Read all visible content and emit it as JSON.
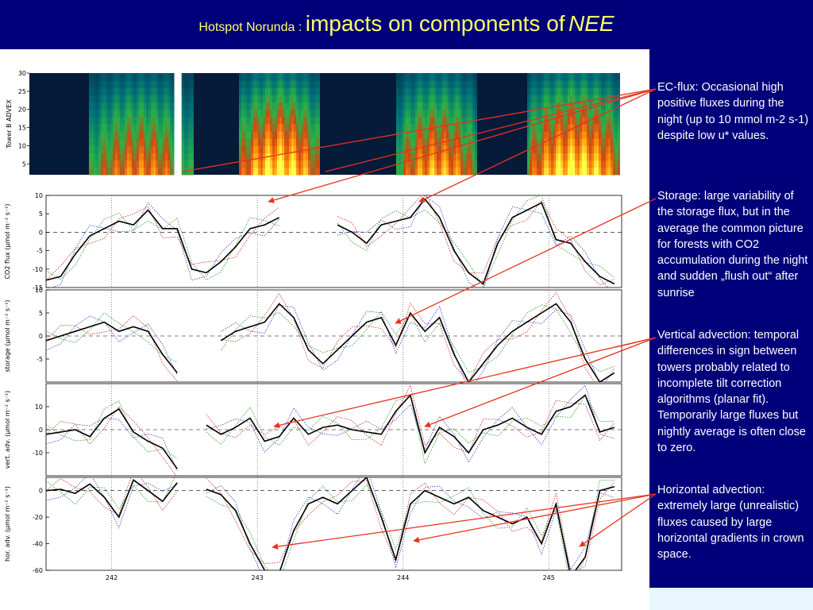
{
  "title": {
    "prefix": "Hotspot Norunda :",
    "main": "impacts on components of",
    "emph": "NEE"
  },
  "notes": [
    "EC-flux: Occasional high positive fluxes during the night (up to 10 mmol m-2 s-1) despite low u* values.",
    "Storage: large variability of the storage flux, but in the average the common picture for forests with CO2 accumulation during the night and sudden „flush out“ after sunrise",
    "Vertical advection: temporal differences in sign between towers probably related to incomplete tilt correction algorithms (planar fit). Temporarily large fluxes but nightly average is often close to zero.",
    "Horizontal advection: extremely large (unrealistic) fluxes caused by large horizontal gradients in crown space."
  ],
  "colors": {
    "background": "#00007a",
    "title": "#ffff66",
    "notes": "#ffffff",
    "arrow": "#e8321e"
  },
  "chart_data": {
    "type": "line",
    "x_ticks": [
      242,
      243,
      244,
      245
    ],
    "x_range": [
      241.55,
      245.5
    ],
    "heatmap": {
      "ylabel": "Tower B ADVEX",
      "yticks": [
        5,
        10,
        15,
        20,
        25,
        30
      ],
      "ylim": [
        2,
        30
      ],
      "hot_periods": [
        {
          "x0": 241.83,
          "x1": 242.55,
          "peak": 0.75
        },
        {
          "x0": 242.86,
          "x1": 243.42,
          "peak": 1.0
        },
        {
          "x0": 243.95,
          "x1": 244.5,
          "peak": 0.85
        },
        {
          "x0": 244.84,
          "x1": 245.5,
          "peak": 1.0
        }
      ],
      "gaps": [
        [
          242.43,
          242.48
        ]
      ]
    },
    "panels": [
      {
        "ylabel": "CO2 flux (μmol m⁻² s⁻¹)",
        "yticks": [
          10,
          5,
          0,
          -5,
          -10,
          -15
        ],
        "ylim": [
          -15,
          10
        ],
        "x": [
          241.55,
          241.65,
          241.75,
          241.85,
          241.95,
          242.05,
          242.15,
          242.25,
          242.35,
          242.45,
          242.55,
          242.65,
          242.75,
          242.85,
          242.95,
          243.05,
          243.15,
          243.25,
          243.35,
          243.45,
          243.55,
          243.65,
          243.75,
          243.85,
          243.95,
          244.05,
          244.15,
          244.25,
          244.35,
          244.45,
          244.55,
          244.65,
          244.75,
          244.85,
          244.95,
          245.05,
          245.15,
          245.25,
          245.35,
          245.45
        ],
        "y": [
          -13,
          -12,
          -6,
          -1,
          1,
          3,
          2,
          6,
          1,
          1,
          -10,
          -11,
          -8,
          -4,
          1,
          2,
          4,
          null,
          null,
          null,
          2,
          0,
          -3,
          2,
          3,
          4,
          9,
          4,
          -5,
          -11,
          -14,
          -3,
          4,
          6,
          8,
          -2,
          -3,
          -8,
          -12,
          -14
        ]
      },
      {
        "ylabel": "storage (μmol m⁻² s⁻¹)",
        "yticks": [
          10,
          5,
          0,
          -5
        ],
        "ylim": [
          -10,
          10
        ],
        "x": [
          241.55,
          241.65,
          241.75,
          241.85,
          241.95,
          242.05,
          242.15,
          242.25,
          242.35,
          242.45,
          242.55,
          242.65,
          242.75,
          242.85,
          242.95,
          243.05,
          243.15,
          243.25,
          243.35,
          243.45,
          243.55,
          243.65,
          243.75,
          243.85,
          243.95,
          244.05,
          244.15,
          244.25,
          244.35,
          244.45,
          244.55,
          244.65,
          244.75,
          244.85,
          244.95,
          245.05,
          245.15,
          245.25,
          245.35,
          245.45
        ],
        "y": [
          -1,
          0,
          1,
          2,
          3,
          1,
          2,
          1,
          -4,
          -8,
          null,
          null,
          -1,
          1,
          2,
          3,
          7,
          4,
          -3,
          -6,
          -3,
          0,
          3,
          4,
          -2,
          5,
          1,
          4,
          -4,
          -10,
          -6,
          -2,
          1,
          3,
          5,
          7,
          3,
          -5,
          -10,
          -8
        ]
      },
      {
        "ylabel": "vert. adv. (μmol m⁻² s⁻¹)",
        "yticks": [
          10,
          0,
          -10
        ],
        "ylim": [
          -20,
          20
        ],
        "x": [
          241.55,
          241.65,
          241.75,
          241.85,
          241.95,
          242.05,
          242.15,
          242.25,
          242.35,
          242.45,
          242.55,
          242.65,
          242.75,
          242.85,
          242.95,
          243.05,
          243.15,
          243.25,
          243.35,
          243.45,
          243.55,
          243.65,
          243.75,
          243.85,
          243.95,
          244.05,
          244.15,
          244.25,
          244.35,
          244.45,
          244.55,
          244.65,
          244.75,
          244.85,
          244.95,
          245.05,
          245.15,
          245.25,
          245.35,
          245.45
        ],
        "y": [
          -2,
          -1,
          0,
          -3,
          5,
          9,
          -1,
          -5,
          -8,
          -17,
          null,
          2,
          -2,
          1,
          5,
          -5,
          -3,
          5,
          -2,
          1,
          2,
          0,
          -1,
          -2,
          8,
          15,
          -10,
          1,
          -3,
          -10,
          0,
          2,
          5,
          1,
          -2,
          8,
          10,
          15,
          -1,
          1
        ]
      },
      {
        "ylabel": "hor. adv. (μmol m⁻² s⁻¹)",
        "yticks": [
          0,
          -20,
          -40,
          -60
        ],
        "ylim": [
          -60,
          10
        ],
        "x": [
          241.55,
          241.65,
          241.75,
          241.85,
          241.95,
          242.05,
          242.15,
          242.25,
          242.35,
          242.45,
          242.55,
          242.65,
          242.75,
          242.85,
          242.95,
          243.05,
          243.15,
          243.25,
          243.35,
          243.45,
          243.55,
          243.65,
          243.75,
          243.85,
          243.95,
          244.05,
          244.15,
          244.25,
          244.35,
          244.45,
          244.55,
          244.65,
          244.75,
          244.85,
          244.95,
          245.05,
          245.15,
          245.25,
          245.35,
          245.45
        ],
        "y": [
          0,
          1,
          -2,
          5,
          -5,
          -20,
          8,
          0,
          -8,
          6,
          null,
          1,
          -3,
          -15,
          -40,
          -60,
          -62,
          -30,
          -10,
          -5,
          -10,
          0,
          10,
          -20,
          -52,
          -10,
          0,
          -5,
          -10,
          -5,
          -15,
          -20,
          -25,
          -20,
          -40,
          -10,
          -65,
          -50,
          0,
          3
        ]
      }
    ]
  }
}
